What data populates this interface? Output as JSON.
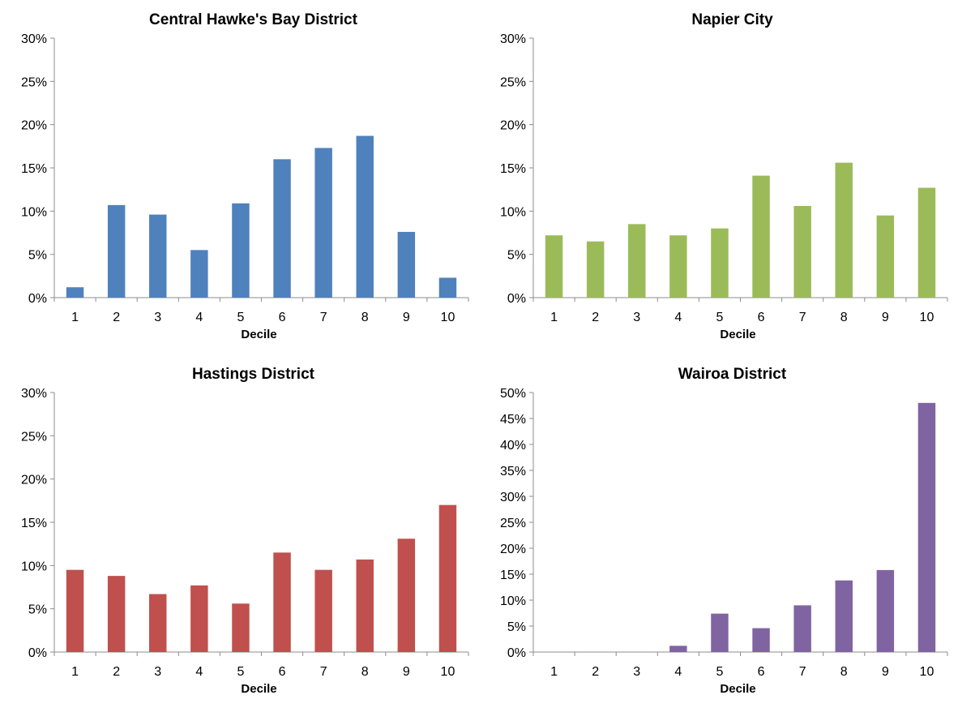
{
  "chart_data": [
    {
      "type": "bar",
      "title": "Central Hawke's Bay District",
      "xlabel": "Decile",
      "ylabel": "",
      "categories": [
        "1",
        "2",
        "3",
        "4",
        "5",
        "6",
        "7",
        "8",
        "9",
        "10"
      ],
      "values": [
        1.2,
        10.7,
        9.6,
        5.5,
        10.9,
        16.0,
        17.3,
        18.7,
        7.6,
        2.3
      ],
      "ylim": [
        0,
        30
      ],
      "yticks": [
        "0%",
        "5%",
        "10%",
        "15%",
        "20%",
        "25%",
        "30%"
      ],
      "color": "#4f81bd"
    },
    {
      "type": "bar",
      "title": "Napier City",
      "xlabel": "Decile",
      "ylabel": "",
      "categories": [
        "1",
        "2",
        "3",
        "4",
        "5",
        "6",
        "7",
        "8",
        "9",
        "10"
      ],
      "values": [
        7.2,
        6.5,
        8.5,
        7.2,
        8.0,
        14.1,
        10.6,
        15.6,
        9.5,
        12.7
      ],
      "ylim": [
        0,
        30
      ],
      "yticks": [
        "0%",
        "5%",
        "10%",
        "15%",
        "20%",
        "25%",
        "30%"
      ],
      "color": "#9bbb59"
    },
    {
      "type": "bar",
      "title": "Hastings District",
      "xlabel": "Decile",
      "ylabel": "",
      "categories": [
        "1",
        "2",
        "3",
        "4",
        "5",
        "6",
        "7",
        "8",
        "9",
        "10"
      ],
      "values": [
        9.5,
        8.8,
        6.7,
        7.7,
        5.6,
        11.5,
        9.5,
        10.7,
        13.1,
        17.0
      ],
      "ylim": [
        0,
        30
      ],
      "yticks": [
        "0%",
        "5%",
        "10%",
        "15%",
        "20%",
        "25%",
        "30%"
      ],
      "color": "#c0504d"
    },
    {
      "type": "bar",
      "title": "Wairoa District",
      "xlabel": "Decile",
      "ylabel": "",
      "categories": [
        "1",
        "2",
        "3",
        "4",
        "5",
        "6",
        "7",
        "8",
        "9",
        "10"
      ],
      "values": [
        0,
        0,
        0,
        1.2,
        7.4,
        4.6,
        9.0,
        13.8,
        15.8,
        48.0
      ],
      "ylim": [
        0,
        50
      ],
      "yticks": [
        "0%",
        "5%",
        "10%",
        "15%",
        "20%",
        "25%",
        "30%",
        "35%",
        "40%",
        "45%",
        "50%"
      ],
      "color": "#8064a2"
    }
  ]
}
